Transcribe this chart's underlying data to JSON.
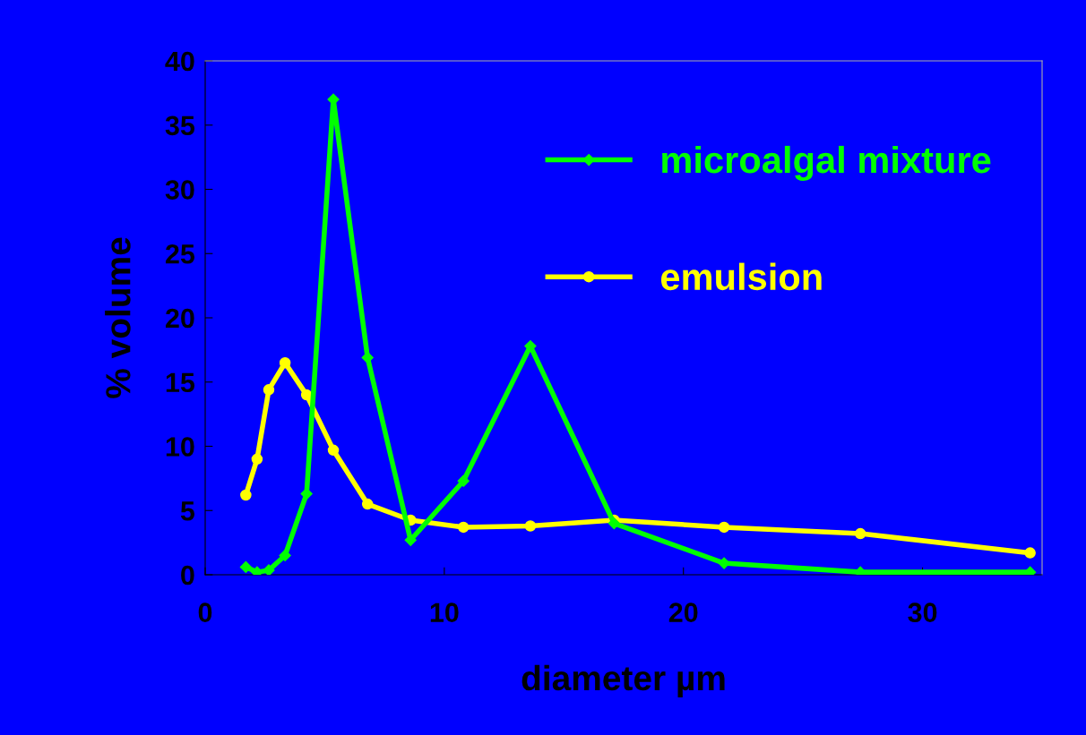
{
  "chart_data": {
    "type": "line",
    "xlabel": "diameter µm",
    "ylabel": "% volume",
    "x": [
      1.7,
      2.17,
      2.66,
      3.34,
      4.24,
      5.36,
      6.79,
      8.59,
      10.8,
      13.6,
      17.1,
      21.7,
      27.4,
      34.5
    ],
    "series": [
      {
        "name": "microalgal mixture",
        "color": "#00ff00",
        "marker": "diamond",
        "values": [
          0.6,
          0.2,
          0.35,
          1.5,
          6.3,
          37.0,
          16.9,
          2.7,
          7.3,
          17.8,
          4.0,
          0.9,
          0.2,
          0.2
        ]
      },
      {
        "name": "emulsion",
        "color": "#ffff00",
        "marker": "circle",
        "values": [
          6.2,
          9.0,
          14.4,
          16.5,
          14.0,
          9.7,
          5.5,
          4.25,
          3.7,
          3.8,
          4.25,
          3.7,
          3.2,
          1.7
        ]
      }
    ],
    "xlim": [
      0,
      35
    ],
    "xticks": [
      0,
      10,
      20,
      30
    ],
    "ylim": [
      0,
      40
    ],
    "yticks": [
      0,
      5,
      10,
      15,
      20,
      25,
      30,
      35,
      40
    ],
    "grid": false,
    "legend": "top right"
  }
}
